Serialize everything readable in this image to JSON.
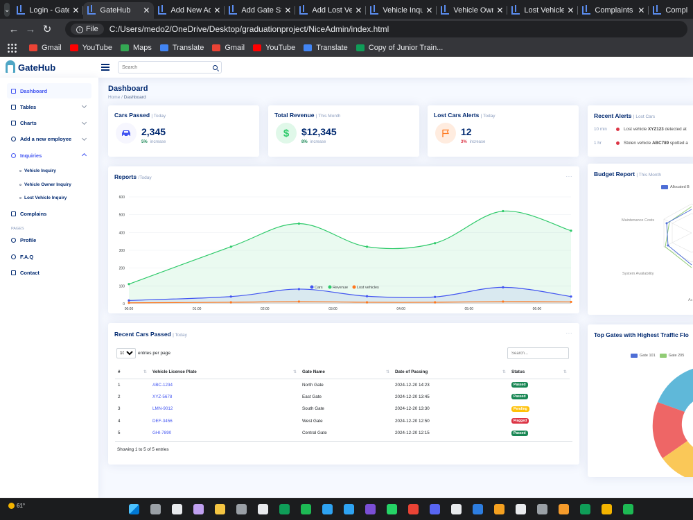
{
  "browser": {
    "tabs": [
      {
        "label": "Login - GateHub",
        "active": false
      },
      {
        "label": "GateHub",
        "active": true
      },
      {
        "label": "Add New Admin",
        "active": false
      },
      {
        "label": "Add Gate Staff",
        "active": false
      },
      {
        "label": "Add Lost Vehicle",
        "active": false
      },
      {
        "label": "Vehicle Inquiry",
        "active": false
      },
      {
        "label": "Vehicle Owner",
        "active": false
      },
      {
        "label": "Lost Vehicle Inquiry",
        "active": false
      },
      {
        "label": "Complaints",
        "active": false
      },
      {
        "label": "Compl",
        "active": false
      }
    ],
    "address_chip": "File",
    "url": "C:/Users/medo2/OneDrive/Desktop/graduationproject/NiceAdmin/index.html",
    "bookmarks": [
      {
        "label": "Gmail",
        "color": "#ea4335"
      },
      {
        "label": "YouTube",
        "color": "#ff0000"
      },
      {
        "label": "Maps",
        "color": "#34a853"
      },
      {
        "label": "Translate",
        "color": "#4285f4"
      },
      {
        "label": "Gmail",
        "color": "#ea4335"
      },
      {
        "label": "YouTube",
        "color": "#ff0000"
      },
      {
        "label": "Translate",
        "color": "#4285f4"
      },
      {
        "label": "Copy of Junior Train...",
        "color": "#0f9d58"
      }
    ]
  },
  "header": {
    "logo": "GateHub",
    "search_placeholder": "Search"
  },
  "sidebar": {
    "items": [
      {
        "label": "Dashboard",
        "icon": "grid-icon"
      },
      {
        "label": "Tables",
        "icon": "table-icon"
      },
      {
        "label": "Charts",
        "icon": "bar-chart-icon"
      },
      {
        "label": "Add a new employee",
        "icon": "person-add-icon"
      },
      {
        "label": "Inquiries",
        "icon": "question-circle-icon"
      }
    ],
    "sub_items": [
      "Vehicle Inquiry",
      "Vehicle Owner Inquiry",
      "Lost Vehicle Inquiry"
    ],
    "complains": "Complains",
    "heading": "Pages",
    "pages": [
      {
        "label": "Profile",
        "icon": "person-icon"
      },
      {
        "label": "F.A.Q",
        "icon": "question-circle-icon"
      },
      {
        "label": "Contact",
        "icon": "envelope-icon"
      }
    ]
  },
  "main": {
    "title": "Dashboard",
    "breadcrumb": [
      "Home",
      "Dashboard"
    ],
    "cards": {
      "cars": {
        "title": "Cars Passed",
        "sub": "| Today",
        "value": "2,345",
        "pct": "5%",
        "pct_label": "increase",
        "pct_color": "#198754"
      },
      "revenue": {
        "title": "Total Revenue",
        "sub": "| This Month",
        "value": "$12,345",
        "pct": "8%",
        "pct_label": "increase",
        "pct_color": "#198754"
      },
      "lost": {
        "title": "Lost Cars Alerts",
        "sub": "| Today",
        "value": "12",
        "pct": "3%",
        "pct_label": "increase",
        "pct_color": "#dc3545"
      }
    },
    "recent_alerts": {
      "title": "Recent Alerts",
      "sub": "| Lost Cars",
      "rows": [
        {
          "time": "10 min",
          "pre": "Lost vehicle",
          "plate": "XYZ123",
          "post": "detected at"
        },
        {
          "time": "1 hr",
          "pre": "Stolen vehicle",
          "plate": "ABC789",
          "post": "spotted a"
        }
      ]
    },
    "reports": {
      "title": "Reports",
      "sub": "/Today"
    },
    "budget": {
      "title": "Budget Report",
      "sub": "| This Month",
      "legend": "Allocated B",
      "labels": [
        "Maintenance Costs",
        "System Availability",
        "Ac"
      ]
    },
    "recent_cars": {
      "title": "Recent Cars Passed",
      "sub": "| Today",
      "entries_value": "10",
      "entries_label": "entries per page",
      "search_placeholder": "Search...",
      "columns": [
        "#",
        "Vehicle License Plate",
        "Gate Name",
        "Date of Passing",
        "Status"
      ],
      "rows": [
        {
          "n": "1",
          "plate": "ABC-1234",
          "gate": "North Gate",
          "date": "2024-12-20 14:23",
          "status": "Passed",
          "cls": "b-passed"
        },
        {
          "n": "2",
          "plate": "XYZ-5678",
          "gate": "East Gate",
          "date": "2024-12-20 13:45",
          "status": "Passed",
          "cls": "b-passed"
        },
        {
          "n": "3",
          "plate": "LMN-9012",
          "gate": "South Gate",
          "date": "2024-12-20 13:30",
          "status": "Pending",
          "cls": "b-pending"
        },
        {
          "n": "4",
          "plate": "DEF-3456",
          "gate": "West Gate",
          "date": "2024-12-20 12:50",
          "status": "Flagged",
          "cls": "b-flagged"
        },
        {
          "n": "5",
          "plate": "GHI-7890",
          "gate": "Central Gate",
          "date": "2024-12-20 12:15",
          "status": "Passed",
          "cls": "b-passed"
        }
      ],
      "info": "Showing 1 to 5 of 5 entries"
    },
    "top_gates": {
      "title": "Top Gates with Highest Traffic Flo",
      "legend": [
        "Gate 101",
        "Gate 205"
      ],
      "legend_colors": [
        "#4e6ed6",
        "#91cc75"
      ]
    }
  },
  "chart_data": {
    "type": "area",
    "x": [
      "00:00",
      "01:00",
      "02:00",
      "03:00",
      "04:00",
      "05:00",
      "06:00"
    ],
    "ylim": [
      0,
      600
    ],
    "yticks": [
      0,
      100,
      200,
      300,
      400,
      500,
      600
    ],
    "series": [
      {
        "name": "Cars",
        "color": "#4154f1",
        "points": [
          [
            0,
            18
          ],
          [
            1.5,
            40
          ],
          [
            2.5,
            82
          ],
          [
            3.5,
            42
          ],
          [
            4.5,
            38
          ],
          [
            5.5,
            92
          ],
          [
            6.5,
            40
          ]
        ]
      },
      {
        "name": "Revenue",
        "color": "#2eca6a",
        "points": [
          [
            0,
            110
          ],
          [
            1.5,
            320
          ],
          [
            2.5,
            450
          ],
          [
            3.5,
            320
          ],
          [
            4.5,
            340
          ],
          [
            5.5,
            520
          ],
          [
            6.5,
            410
          ]
        ]
      },
      {
        "name": "Lost vehicles",
        "color": "#ff771d",
        "points": [
          [
            0,
            5
          ],
          [
            1.5,
            8
          ],
          [
            2.5,
            12
          ],
          [
            3.5,
            8
          ],
          [
            4.5,
            8
          ],
          [
            5.5,
            12
          ],
          [
            6.5,
            10
          ]
        ]
      }
    ]
  },
  "taskbar": {
    "weather": "61°"
  }
}
